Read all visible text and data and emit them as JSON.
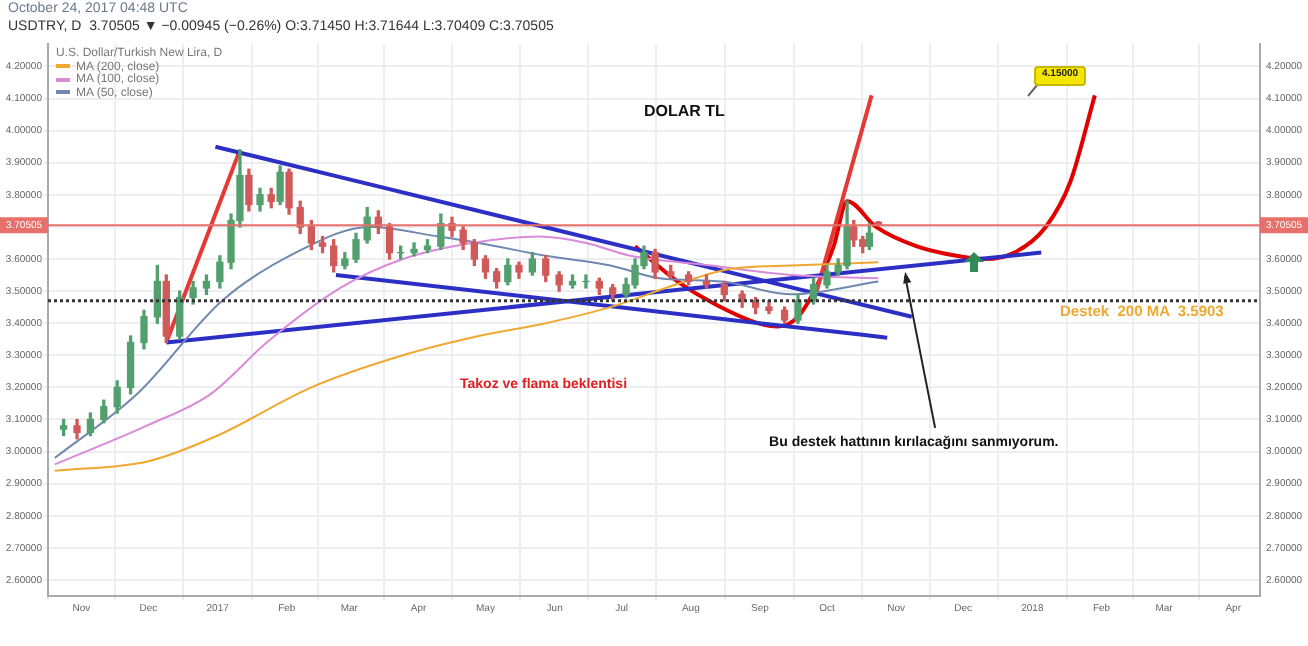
{
  "chart_data": {
    "type": "candlestick",
    "title": "DOLAR TL",
    "subtitle": "USDTRY, D  3.70505 ▼ −0.00945 (−0.26%) O:3.71450 H:3.71644 L:3.70409 C:3.70505",
    "legend_title": "U.S. Dollar/Turkish New Lira, D",
    "annotations": [
      "October 24, 2017 04:48 UTC",
      "Takoz ve flama beklentisi",
      "Destek  200 MA  3.5903",
      {
        "text": "Bu destek hattının kırılacağını sanmıyorum.",
        "x": "2017-11-05",
        "y": 3.56
      },
      "4.15000"
    ],
    "x": [
      "2016-10-24",
      "2016-10-30",
      "2016-11-05",
      "2016-11-11",
      "2016-11-17",
      "2016-11-23",
      "2016-11-29",
      "2016-12-05",
      "2016-12-09",
      "2016-12-15",
      "2016-12-21",
      "2016-12-27",
      "2017-01-02",
      "2017-01-07",
      "2017-01-11",
      "2017-01-15",
      "2017-01-20",
      "2017-01-25",
      "2017-01-29",
      "2017-02-02",
      "2017-02-07",
      "2017-02-12",
      "2017-02-17",
      "2017-02-22",
      "2017-02-27",
      "2017-03-04",
      "2017-03-09",
      "2017-03-14",
      "2017-03-19",
      "2017-03-24",
      "2017-03-30",
      "2017-04-05",
      "2017-04-11",
      "2017-04-16",
      "2017-04-21",
      "2017-04-26",
      "2017-05-01",
      "2017-05-06",
      "2017-05-11",
      "2017-05-16",
      "2017-05-22",
      "2017-05-28",
      "2017-06-03",
      "2017-06-09",
      "2017-06-15",
      "2017-06-21",
      "2017-06-27",
      "2017-07-03",
      "2017-07-07",
      "2017-07-11",
      "2017-07-16",
      "2017-07-23",
      "2017-07-31",
      "2017-08-08",
      "2017-08-16",
      "2017-08-24",
      "2017-08-30",
      "2017-09-05",
      "2017-09-12",
      "2017-09-18",
      "2017-09-25",
      "2017-10-01",
      "2017-10-06",
      "2017-10-10",
      "2017-10-13",
      "2017-10-17",
      "2017-10-20",
      "2017-10-24"
    ],
    "ohlc": [
      [
        3.07,
        3.1,
        3.05,
        3.08
      ],
      [
        3.08,
        3.1,
        3.04,
        3.06
      ],
      [
        3.06,
        3.12,
        3.05,
        3.1
      ],
      [
        3.1,
        3.16,
        3.09,
        3.14
      ],
      [
        3.14,
        3.22,
        3.12,
        3.2
      ],
      [
        3.2,
        3.36,
        3.18,
        3.34
      ],
      [
        3.34,
        3.44,
        3.32,
        3.42
      ],
      [
        3.42,
        3.58,
        3.4,
        3.53
      ],
      [
        3.53,
        3.55,
        3.34,
        3.36
      ],
      [
        3.36,
        3.5,
        3.35,
        3.48
      ],
      [
        3.48,
        3.53,
        3.46,
        3.51
      ],
      [
        3.51,
        3.55,
        3.49,
        3.53
      ],
      [
        3.53,
        3.61,
        3.51,
        3.59
      ],
      [
        3.59,
        3.74,
        3.57,
        3.72
      ],
      [
        3.72,
        3.94,
        3.7,
        3.86
      ],
      [
        3.86,
        3.88,
        3.75,
        3.77
      ],
      [
        3.77,
        3.82,
        3.75,
        3.8
      ],
      [
        3.8,
        3.82,
        3.76,
        3.78
      ],
      [
        3.78,
        3.89,
        3.77,
        3.87
      ],
      [
        3.87,
        3.88,
        3.74,
        3.76
      ],
      [
        3.76,
        3.78,
        3.68,
        3.7
      ],
      [
        3.7,
        3.72,
        3.63,
        3.65
      ],
      [
        3.65,
        3.67,
        3.62,
        3.64
      ],
      [
        3.64,
        3.66,
        3.56,
        3.58
      ],
      [
        3.58,
        3.62,
        3.57,
        3.6
      ],
      [
        3.6,
        3.68,
        3.59,
        3.66
      ],
      [
        3.66,
        3.76,
        3.65,
        3.73
      ],
      [
        3.73,
        3.75,
        3.68,
        3.7
      ],
      [
        3.7,
        3.71,
        3.6,
        3.62
      ],
      [
        3.62,
        3.64,
        3.6,
        3.62
      ],
      [
        3.62,
        3.65,
        3.61,
        3.63
      ],
      [
        3.63,
        3.66,
        3.62,
        3.64
      ],
      [
        3.64,
        3.74,
        3.63,
        3.71
      ],
      [
        3.71,
        3.73,
        3.67,
        3.69
      ],
      [
        3.69,
        3.7,
        3.63,
        3.65
      ],
      [
        3.65,
        3.66,
        3.58,
        3.6
      ],
      [
        3.6,
        3.61,
        3.54,
        3.56
      ],
      [
        3.56,
        3.57,
        3.51,
        3.53
      ],
      [
        3.53,
        3.6,
        3.52,
        3.58
      ],
      [
        3.58,
        3.59,
        3.54,
        3.56
      ],
      [
        3.56,
        3.62,
        3.55,
        3.6
      ],
      [
        3.6,
        3.61,
        3.53,
        3.55
      ],
      [
        3.55,
        3.56,
        3.5,
        3.52
      ],
      [
        3.52,
        3.55,
        3.51,
        3.53
      ],
      [
        3.53,
        3.55,
        3.51,
        3.53
      ],
      [
        3.53,
        3.54,
        3.49,
        3.51
      ],
      [
        3.51,
        3.52,
        3.47,
        3.49
      ],
      [
        3.49,
        3.54,
        3.48,
        3.52
      ],
      [
        3.52,
        3.6,
        3.51,
        3.58
      ],
      [
        3.58,
        3.64,
        3.57,
        3.62
      ],
      [
        3.62,
        3.63,
        3.54,
        3.56
      ],
      [
        3.56,
        3.58,
        3.54,
        3.55
      ],
      [
        3.55,
        3.56,
        3.52,
        3.53
      ],
      [
        3.53,
        3.55,
        3.51,
        3.52
      ],
      [
        3.52,
        3.53,
        3.47,
        3.49
      ],
      [
        3.49,
        3.5,
        3.45,
        3.47
      ],
      [
        3.47,
        3.48,
        3.43,
        3.45
      ],
      [
        3.45,
        3.47,
        3.43,
        3.44
      ],
      [
        3.44,
        3.45,
        3.4,
        3.41
      ],
      [
        3.41,
        3.49,
        3.4,
        3.47
      ],
      [
        3.47,
        3.54,
        3.46,
        3.52
      ],
      [
        3.52,
        3.58,
        3.51,
        3.56
      ],
      [
        3.56,
        3.6,
        3.55,
        3.58
      ],
      [
        3.58,
        3.78,
        3.57,
        3.7
      ],
      [
        3.7,
        3.72,
        3.64,
        3.66
      ],
      [
        3.66,
        3.67,
        3.62,
        3.64
      ],
      [
        3.64,
        3.71,
        3.63,
        3.68
      ],
      [
        3.7145,
        3.71644,
        3.70409,
        3.70505
      ]
    ],
    "colors": [
      "#53a06e",
      "#d05a5a",
      "#53a06e",
      "#53a06e",
      "#53a06e",
      "#53a06e",
      "#53a06e",
      "#53a06e",
      "#d05a5a",
      "#53a06e",
      "#53a06e",
      "#53a06e",
      "#53a06e",
      "#53a06e",
      "#53a06e",
      "#d05a5a",
      "#53a06e",
      "#d05a5a",
      "#53a06e",
      "#d05a5a",
      "#d05a5a",
      "#d05a5a",
      "#d05a5a",
      "#d05a5a",
      "#53a06e",
      "#53a06e",
      "#53a06e",
      "#d05a5a",
      "#d05a5a",
      "#53a06e",
      "#53a06e",
      "#53a06e",
      "#53a06e",
      "#d05a5a",
      "#d05a5a",
      "#d05a5a",
      "#d05a5a",
      "#d05a5a",
      "#53a06e",
      "#d05a5a",
      "#53a06e",
      "#d05a5a",
      "#d05a5a",
      "#53a06e",
      "#53a06e",
      "#d05a5a",
      "#d05a5a",
      "#53a06e",
      "#53a06e",
      "#53a06e",
      "#d05a5a",
      "#d05a5a",
      "#d05a5a",
      "#d05a5a",
      "#d05a5a",
      "#d05a5a",
      "#d05a5a",
      "#d05a5a",
      "#d05a5a",
      "#53a06e",
      "#53a06e",
      "#53a06e",
      "#53a06e",
      "#53a06e",
      "#d05a5a",
      "#d05a5a",
      "#53a06e",
      "#d05a5a"
    ],
    "series": [
      {
        "name": "MA (200, close)",
        "type": "line",
        "color": "#f0a830",
        "x": [
          "2016-10-20",
          "2016-12-01",
          "2017-01-01",
          "2017-02-12",
          "2017-03-25",
          "2017-04-28",
          "2017-05-28",
          "2017-06-26",
          "2017-07-25",
          "2017-08-19",
          "2017-09-15",
          "2017-10-24"
        ],
        "values": [
          2.94,
          2.97,
          3.05,
          3.2,
          3.3,
          3.36,
          3.4,
          3.45,
          3.52,
          3.57,
          3.58,
          3.59
        ]
      },
      {
        "name": "MA (100, close)",
        "type": "line",
        "color": "#d98ad9",
        "x": [
          "2016-10-20",
          "2016-11-30",
          "2016-12-29",
          "2017-01-23",
          "2017-02-25",
          "2017-03-25",
          "2017-04-25",
          "2017-05-25",
          "2017-06-15",
          "2017-07-05",
          "2017-08-10",
          "2017-09-15",
          "2017-10-24"
        ],
        "values": [
          2.96,
          3.08,
          3.18,
          3.34,
          3.51,
          3.6,
          3.65,
          3.67,
          3.65,
          3.61,
          3.58,
          3.55,
          3.54
        ]
      },
      {
        "name": "MA (50, close)",
        "type": "line",
        "color": "#7088b0",
        "x": [
          "2016-10-20",
          "2016-11-26",
          "2017-01-03",
          "2017-02-05",
          "2017-03-10",
          "2017-04-10",
          "2017-04-28",
          "2017-05-28",
          "2017-06-26",
          "2017-07-18",
          "2017-08-15",
          "2017-09-15",
          "2017-10-24"
        ],
        "values": [
          2.98,
          3.18,
          3.47,
          3.62,
          3.7,
          3.67,
          3.65,
          3.61,
          3.58,
          3.54,
          3.53,
          3.49,
          3.53
        ]
      },
      {
        "type": "line",
        "color": "#2b2fc4",
        "x": [
          "2016-12-31",
          "2017-11-08"
        ],
        "values": [
          3.95,
          3.42
        ]
      },
      {
        "type": "line",
        "color": "#2b2fc4",
        "x": [
          "2016-12-09",
          "2018-01-05"
        ],
        "values": [
          3.34,
          3.62
        ]
      },
      {
        "type": "line",
        "color": "#2b2fc4",
        "x": [
          "2017-02-23",
          "2017-10-28"
        ],
        "values": [
          3.55,
          3.355
        ]
      },
      {
        "type": "line",
        "color": "#e53935",
        "x": [
          "2016-12-09",
          "2017-01-11"
        ],
        "values": [
          3.34,
          3.94
        ]
      },
      {
        "type": "line",
        "color": "#e53935",
        "x": [
          "2017-09-26",
          "2017-10-21"
        ],
        "values": [
          3.49,
          4.11
        ]
      },
      {
        "type": "line",
        "color": "#e00000",
        "x": [
          "2017-07-07",
          "2017-07-26",
          "2017-08-13",
          "2017-08-31",
          "2017-09-09",
          "2017-09-18",
          "2017-09-26",
          "2017-10-04",
          "2017-10-10",
          "2017-10-23",
          "2017-11-10",
          "2017-11-28",
          "2017-12-11",
          "2017-12-24",
          "2018-01-07",
          "2018-01-18",
          "2018-01-29"
        ],
        "values": [
          3.64,
          3.53,
          3.455,
          3.4,
          3.39,
          3.42,
          3.51,
          3.64,
          3.78,
          3.7,
          3.64,
          3.61,
          3.6,
          3.62,
          3.7,
          3.84,
          4.11
        ]
      }
    ],
    "ref_lines": [
      {
        "axis": "y",
        "value": 3.70505,
        "label": "3.70505",
        "color": "#e8706a"
      },
      {
        "axis": "y",
        "value": 3.47,
        "color": "#333333",
        "line_style": "dotted"
      }
    ],
    "xlim": [
      "2016-10-17",
      "2018-04-13"
    ],
    "xticks": [
      {
        "value": "2016-11-01",
        "label": "Nov"
      },
      {
        "value": "2016-12-01",
        "label": "Dec"
      },
      {
        "value": "2017-01-01",
        "label": "2017"
      },
      {
        "value": "2017-02-01",
        "label": "Feb"
      },
      {
        "value": "2017-03-01",
        "label": "Mar"
      },
      {
        "value": "2017-04-01",
        "label": "Apr"
      },
      {
        "value": "2017-05-01",
        "label": "May"
      },
      {
        "value": "2017-06-01",
        "label": "Jun"
      },
      {
        "value": "2017-07-01",
        "label": "Jul"
      },
      {
        "value": "2017-08-01",
        "label": "Aug"
      },
      {
        "value": "2017-09-01",
        "label": "Sep"
      },
      {
        "value": "2017-10-01",
        "label": "Oct"
      },
      {
        "value": "2017-11-01",
        "label": "Nov"
      },
      {
        "value": "2017-12-01",
        "label": "Dec"
      },
      {
        "value": "2018-01-01",
        "label": "2018"
      },
      {
        "value": "2018-02-01",
        "label": "Feb"
      },
      {
        "value": "2018-03-01",
        "label": "Mar"
      },
      {
        "value": "2018-04-01",
        "label": "Apr"
      }
    ],
    "ylim": [
      2.55,
      4.27
    ],
    "yticks": [
      {
        "value": 2.6,
        "label": "2.60000"
      },
      {
        "value": 2.7,
        "label": "2.70000"
      },
      {
        "value": 2.8,
        "label": "2.80000"
      },
      {
        "value": 2.9,
        "label": "2.90000"
      },
      {
        "value": 3.0,
        "label": "3.00000"
      },
      {
        "value": 3.1,
        "label": "3.10000"
      },
      {
        "value": 3.2,
        "label": "3.20000"
      },
      {
        "value": 3.3,
        "label": "3.30000"
      },
      {
        "value": 3.4,
        "label": "3.40000"
      },
      {
        "value": 3.5,
        "label": "3.50000"
      },
      {
        "value": 3.6,
        "label": "3.60000"
      },
      {
        "value": 3.7,
        "label": null
      },
      {
        "value": 3.8,
        "label": "3.80000"
      },
      {
        "value": 3.9,
        "label": "3.90000"
      },
      {
        "value": 4.0,
        "label": "4.00000"
      },
      {
        "value": 4.1,
        "label": "4.10000"
      },
      {
        "value": 4.2,
        "label": "4.20000"
      }
    ],
    "y2lim": [
      2.55,
      4.27
    ],
    "y2ticks": [
      {
        "value": 2.6,
        "label": "2.60000"
      },
      {
        "value": 2.7,
        "label": "2.70000"
      },
      {
        "value": 2.8,
        "label": "2.80000"
      },
      {
        "value": 2.9,
        "label": "2.90000"
      },
      {
        "value": 3.0,
        "label": "3.00000"
      },
      {
        "value": 3.1,
        "label": "3.10000"
      },
      {
        "value": 3.2,
        "label": "3.20000"
      },
      {
        "value": 3.3,
        "label": "3.30000"
      },
      {
        "value": 3.4,
        "label": "3.40000"
      },
      {
        "value": 3.5,
        "label": "3.50000"
      },
      {
        "value": 3.6,
        "label": "3.60000"
      },
      {
        "value": 3.7,
        "label": null
      },
      {
        "value": 3.8,
        "label": "3.80000"
      },
      {
        "value": 3.9,
        "label": "3.90000"
      },
      {
        "value": 4.0,
        "label": "4.00000"
      },
      {
        "value": 4.1,
        "label": "4.10000"
      },
      {
        "value": 4.2,
        "label": "4.20000"
      }
    ],
    "grid": true,
    "legend": "top left"
  }
}
